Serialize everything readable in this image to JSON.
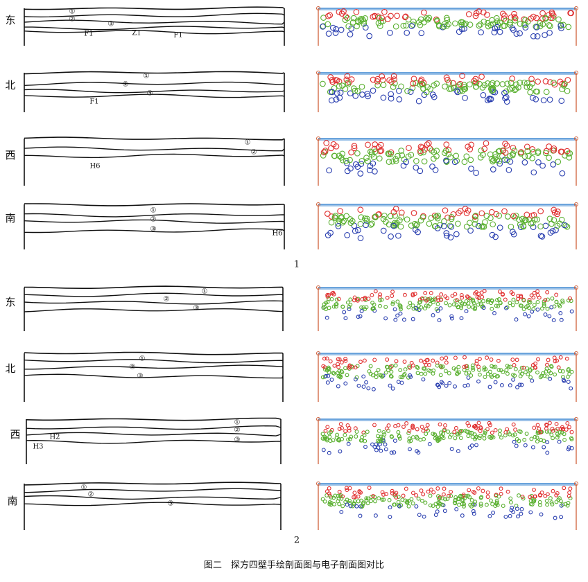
{
  "figure": {
    "groups": [
      {
        "number": "1",
        "panels": [
          {
            "direction": "东",
            "labels": [
              "①",
              "②",
              "③",
              "F1",
              "Z1",
              "F1"
            ]
          },
          {
            "direction": "北",
            "labels": [
              "①",
              "②",
              "③",
              "F1"
            ]
          },
          {
            "direction": "西",
            "labels": [
              "①",
              "②",
              "H6"
            ]
          },
          {
            "direction": "南",
            "labels": [
              "①",
              "②",
              "③",
              "H6"
            ]
          }
        ]
      },
      {
        "number": "2",
        "panels": [
          {
            "direction": "东",
            "labels": [
              "①",
              "②",
              "③"
            ]
          },
          {
            "direction": "北",
            "labels": [
              "①",
              "②",
              "③"
            ]
          },
          {
            "direction": "西",
            "labels": [
              "①",
              "②",
              "③",
              "H2",
              "H3"
            ]
          },
          {
            "direction": "南",
            "labels": [
              "①",
              "②",
              "③"
            ]
          }
        ]
      }
    ],
    "caption": "图二　探方四壁手绘剖面图与电子剖面图对比"
  }
}
